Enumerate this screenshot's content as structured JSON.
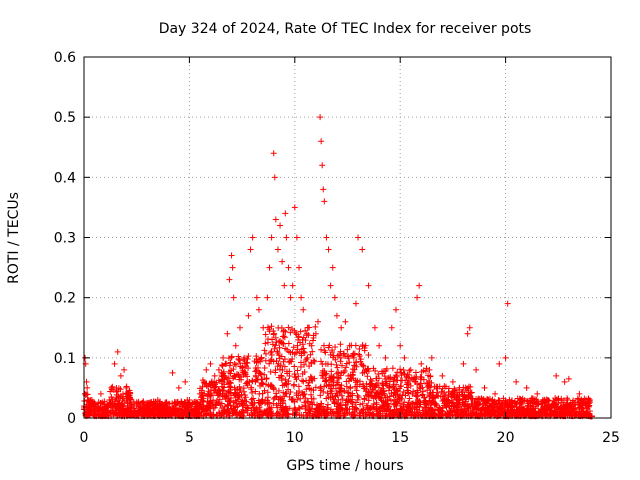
{
  "chart_data": {
    "type": "scatter",
    "title": "Day 324 of 2024, Rate Of TEC Index for receiver pots",
    "xlabel": "GPS time / hours",
    "ylabel": "ROTI / TECUs",
    "xlim": [
      0,
      25
    ],
    "ylim": [
      0,
      0.6
    ],
    "xticks": [
      "0",
      "5",
      "10",
      "15",
      "20",
      "25"
    ],
    "yticks": [
      "0",
      "0.1",
      "0.2",
      "0.3",
      "0.4",
      "0.5",
      "0.6"
    ],
    "grid": true,
    "marker": "+",
    "color": "#ff0000",
    "series": [
      {
        "name": "ROTI",
        "x": [
          0.05,
          0.08,
          0.12,
          0.15,
          0.2,
          0.25,
          0.3,
          0.5,
          0.8,
          1.2,
          1.3,
          1.45,
          1.6,
          1.75,
          1.9,
          2.0,
          2.2,
          2.5,
          3.0,
          3.5,
          3.8,
          4.2,
          4.5,
          4.8,
          4.9,
          5.0,
          5.5,
          5.8,
          6.0,
          6.2,
          6.4,
          6.6,
          6.8,
          6.9,
          7.0,
          7.05,
          7.1,
          7.2,
          7.4,
          7.6,
          7.8,
          7.9,
          8.0,
          8.2,
          8.3,
          8.5,
          8.7,
          8.8,
          8.9,
          9.0,
          9.05,
          9.1,
          9.2,
          9.3,
          9.4,
          9.5,
          9.55,
          9.6,
          9.7,
          9.8,
          9.9,
          10.0,
          10.1,
          10.2,
          10.3,
          10.4,
          10.6,
          10.8,
          11.0,
          11.1,
          11.2,
          11.25,
          11.3,
          11.35,
          11.4,
          11.5,
          11.6,
          11.7,
          11.8,
          11.9,
          12.0,
          12.2,
          12.4,
          12.6,
          12.8,
          12.9,
          13.0,
          13.2,
          13.5,
          13.8,
          14.0,
          14.3,
          14.6,
          14.8,
          15.0,
          15.2,
          15.5,
          15.8,
          15.9,
          16.0,
          16.5,
          17.0,
          17.5,
          18.0,
          18.2,
          18.3,
          18.6,
          19.0,
          19.5,
          19.7,
          20.0,
          20.1,
          20.5,
          21.0,
          21.5,
          22.0,
          22.4,
          22.8,
          23.0,
          23.5,
          24.0
        ],
        "y": [
          0.1,
          0.09,
          0.06,
          0.05,
          0.03,
          0.02,
          0.03,
          0.02,
          0.04,
          0.03,
          0.05,
          0.09,
          0.11,
          0.07,
          0.08,
          0.05,
          0.03,
          0.02,
          0.02,
          0.03,
          0.02,
          0.075,
          0.05,
          0.06,
          0.03,
          0.03,
          0.04,
          0.08,
          0.09,
          0.07,
          0.08,
          0.1,
          0.14,
          0.23,
          0.27,
          0.25,
          0.2,
          0.12,
          0.15,
          0.1,
          0.17,
          0.28,
          0.3,
          0.2,
          0.18,
          0.15,
          0.2,
          0.25,
          0.3,
          0.44,
          0.4,
          0.33,
          0.28,
          0.32,
          0.26,
          0.22,
          0.34,
          0.3,
          0.25,
          0.2,
          0.22,
          0.35,
          0.3,
          0.25,
          0.2,
          0.18,
          0.1,
          0.12,
          0.14,
          0.16,
          0.5,
          0.46,
          0.42,
          0.38,
          0.36,
          0.3,
          0.28,
          0.22,
          0.25,
          0.2,
          0.17,
          0.15,
          0.16,
          0.12,
          0.1,
          0.19,
          0.3,
          0.28,
          0.22,
          0.15,
          0.12,
          0.1,
          0.15,
          0.18,
          0.12,
          0.1,
          0.08,
          0.2,
          0.22,
          0.09,
          0.1,
          0.07,
          0.06,
          0.09,
          0.14,
          0.15,
          0.08,
          0.05,
          0.04,
          0.09,
          0.1,
          0.19,
          0.06,
          0.05,
          0.04,
          0.03,
          0.07,
          0.06,
          0.065,
          0.04,
          0.03
        ]
      }
    ]
  }
}
